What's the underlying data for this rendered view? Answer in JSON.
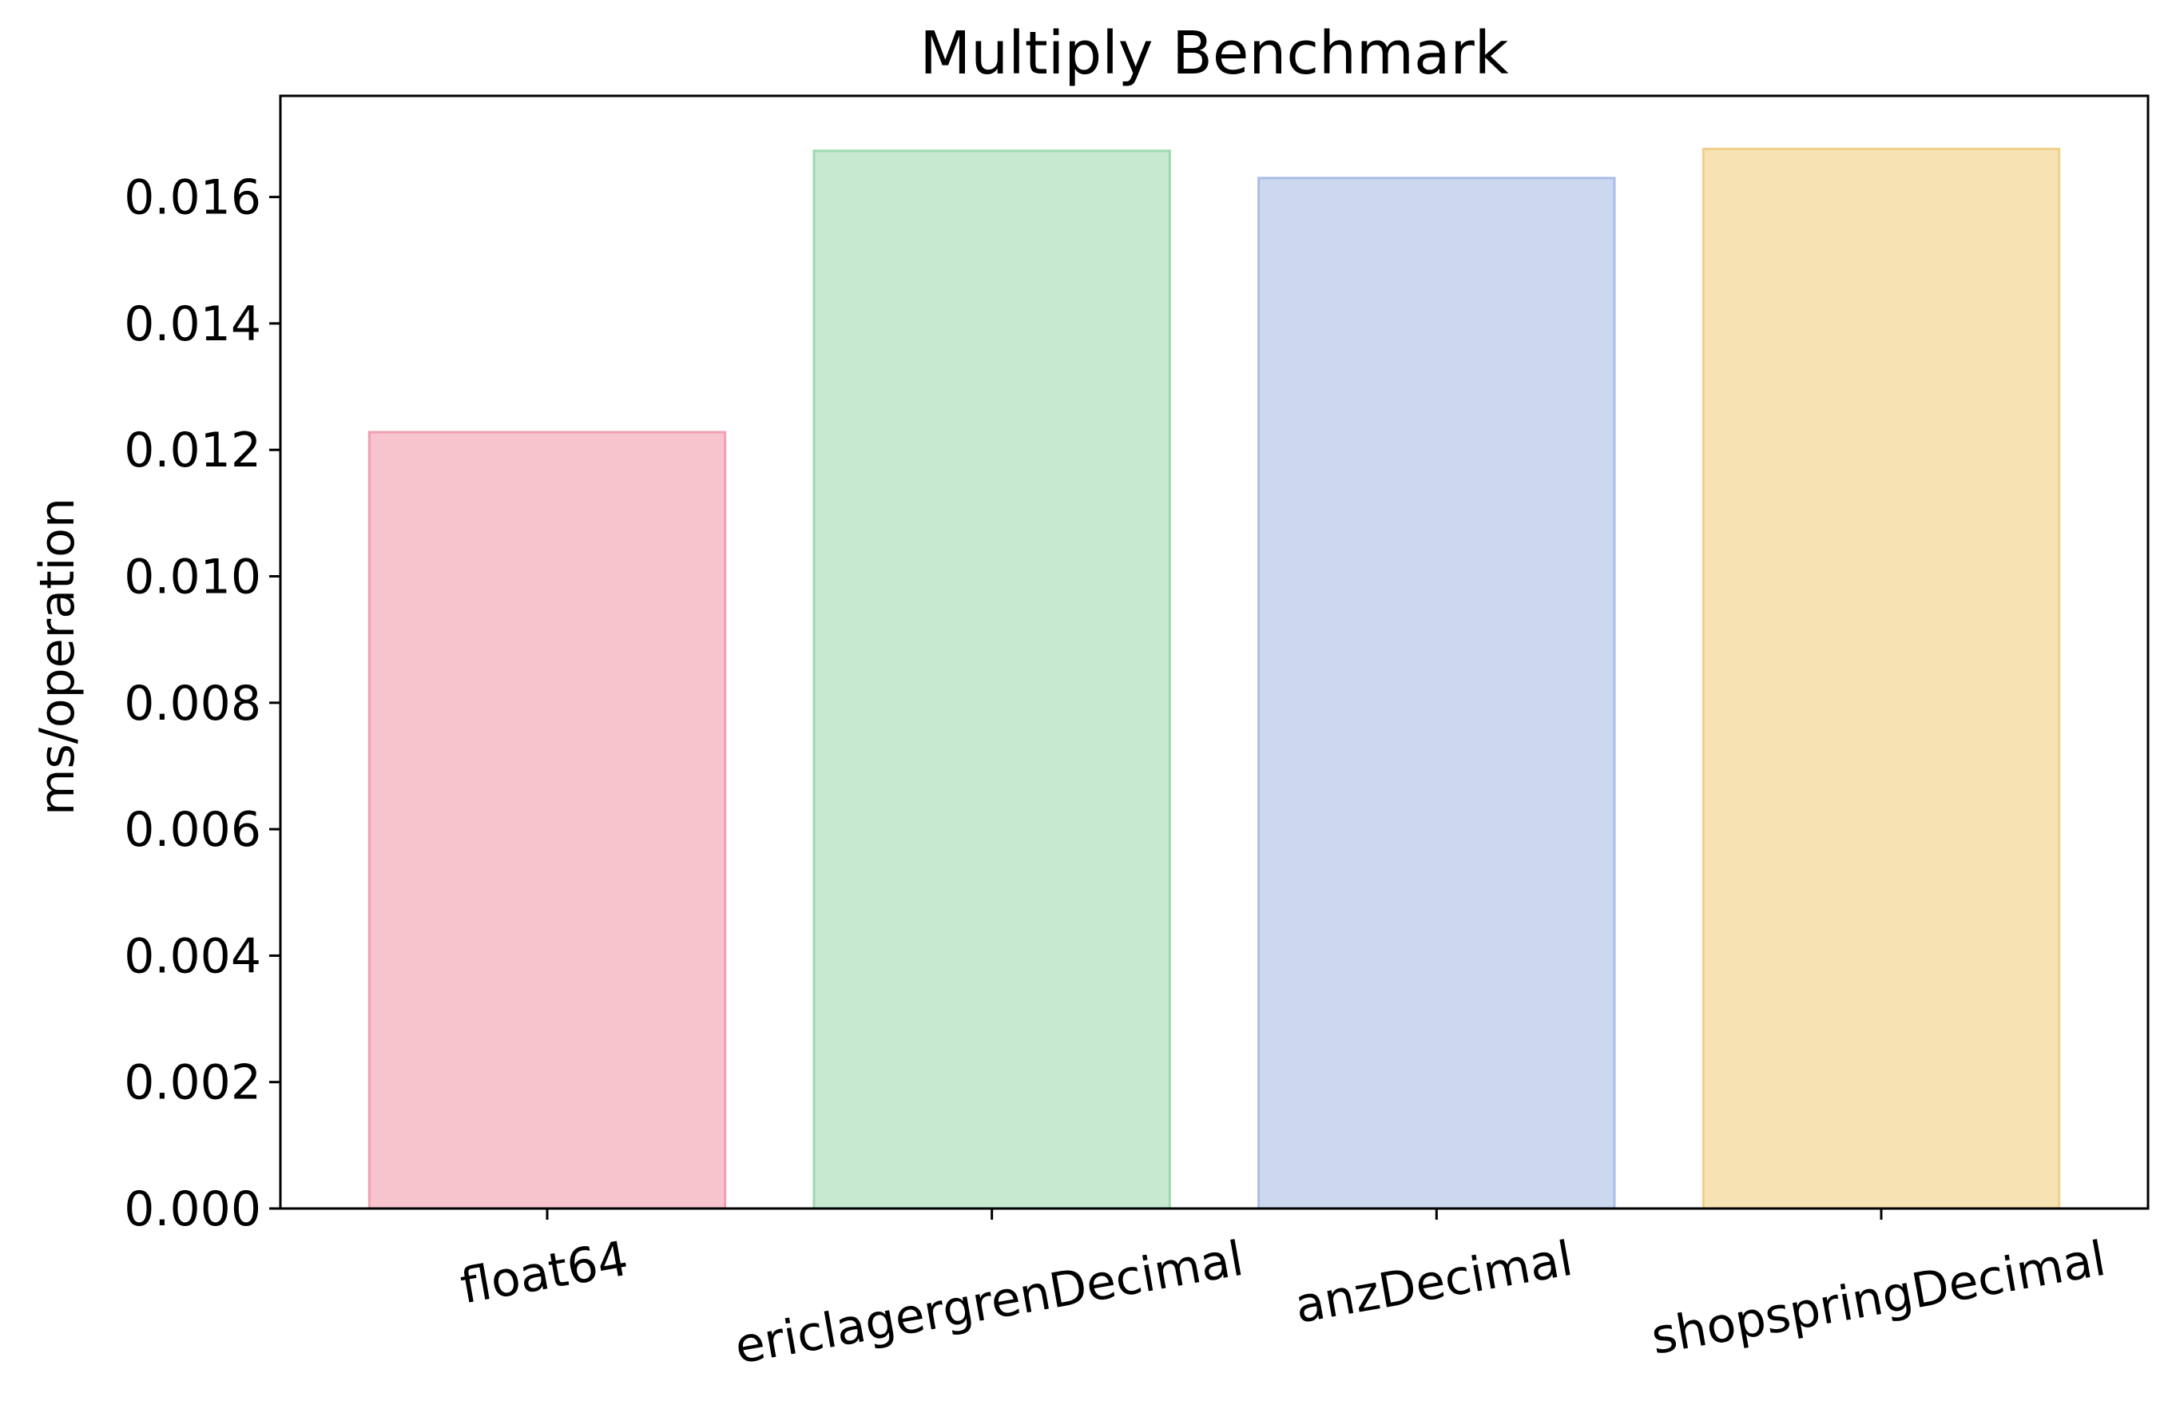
{
  "chart_data": {
    "type": "bar",
    "title": "Multiply Benchmark",
    "xlabel": "",
    "ylabel": "ms/operation",
    "categories": [
      "float64",
      "ericlagergrenDecimal",
      "anzDecimal",
      "shopspringDecimal"
    ],
    "values": [
      0.01228,
      0.01673,
      0.0163,
      0.01676
    ],
    "ylim": [
      0,
      0.0176
    ],
    "yticks": [
      0.0,
      0.002,
      0.004,
      0.006,
      0.008,
      0.01,
      0.012,
      0.014,
      0.016
    ],
    "ytick_labels": [
      "0.000",
      "0.002",
      "0.004",
      "0.006",
      "0.008",
      "0.010",
      "0.012",
      "0.014",
      "0.016"
    ],
    "grid": false,
    "xtick_rotation_deg": 10,
    "colors": {
      "fills": [
        "#f7c4ce",
        "#c6e9cf",
        "#ccd8ef",
        "#f6e2b2"
      ],
      "edges": [
        "#f0a0b0",
        "#9fd8ae",
        "#a9bde6",
        "#eed08a"
      ],
      "axis": "#000000"
    }
  }
}
